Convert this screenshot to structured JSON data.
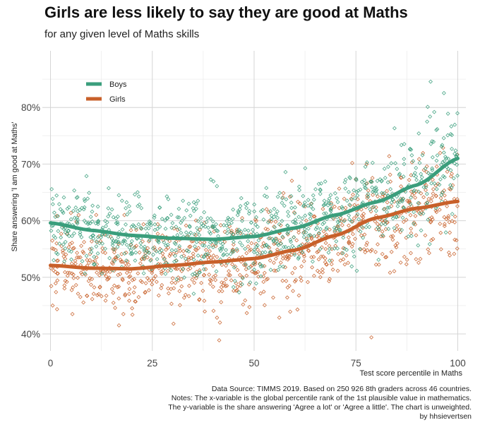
{
  "chart_data": {
    "type": "scatter",
    "title": "Girls are less likely to say they are good at Maths",
    "subtitle": "for any given level of Maths skills",
    "xlabel": "Test score percentile in Maths",
    "ylabel": "Share answering 'I am good at Maths'",
    "xlim": [
      -2,
      102
    ],
    "ylim": [
      37,
      90
    ],
    "x_ticks": [
      0,
      25,
      50,
      75,
      100
    ],
    "x_tick_labels": [
      "0",
      "25",
      "50",
      "75",
      "100"
    ],
    "y_ticks": [
      40,
      50,
      60,
      70,
      80
    ],
    "y_tick_labels": [
      "40%",
      "50%",
      "60%",
      "70%",
      "80%"
    ],
    "grid": true,
    "legend_position": "top-left",
    "series": [
      {
        "name": "Boys",
        "color": "#3a9e7c",
        "smooth_x": [
          0,
          10,
          20,
          30,
          40,
          50,
          60,
          70,
          80,
          90,
          100
        ],
        "smooth_y": [
          59.6,
          58.3,
          57.4,
          56.9,
          56.7,
          57.2,
          58.7,
          61.0,
          63.3,
          66.3,
          71.0
        ],
        "scatter_spread": 3.2,
        "scatter_spread_top": 4.5
      },
      {
        "name": "Girls",
        "color": "#c8602a",
        "smooth_x": [
          0,
          10,
          20,
          30,
          40,
          50,
          60,
          70,
          80,
          90,
          100
        ],
        "smooth_y": [
          52.1,
          51.6,
          51.5,
          52.1,
          52.7,
          53.3,
          54.8,
          57.4,
          60.5,
          62.2,
          63.4
        ],
        "scatter_spread": 3.8,
        "scatter_spread_top": 4.5
      }
    ]
  },
  "caption": {
    "line1": "Data Source: TIMMS 2019. Based on 250 926 8th graders across 46 countries.",
    "line2": "Notes: The x-variable is the global percentile rank of the 1st plausible value in mathematics.",
    "line3": "The y-variable is the share answering 'Agree a lot' or 'Agree a little'. The chart is unweighted.",
    "line4": "by hhsievertsen"
  }
}
